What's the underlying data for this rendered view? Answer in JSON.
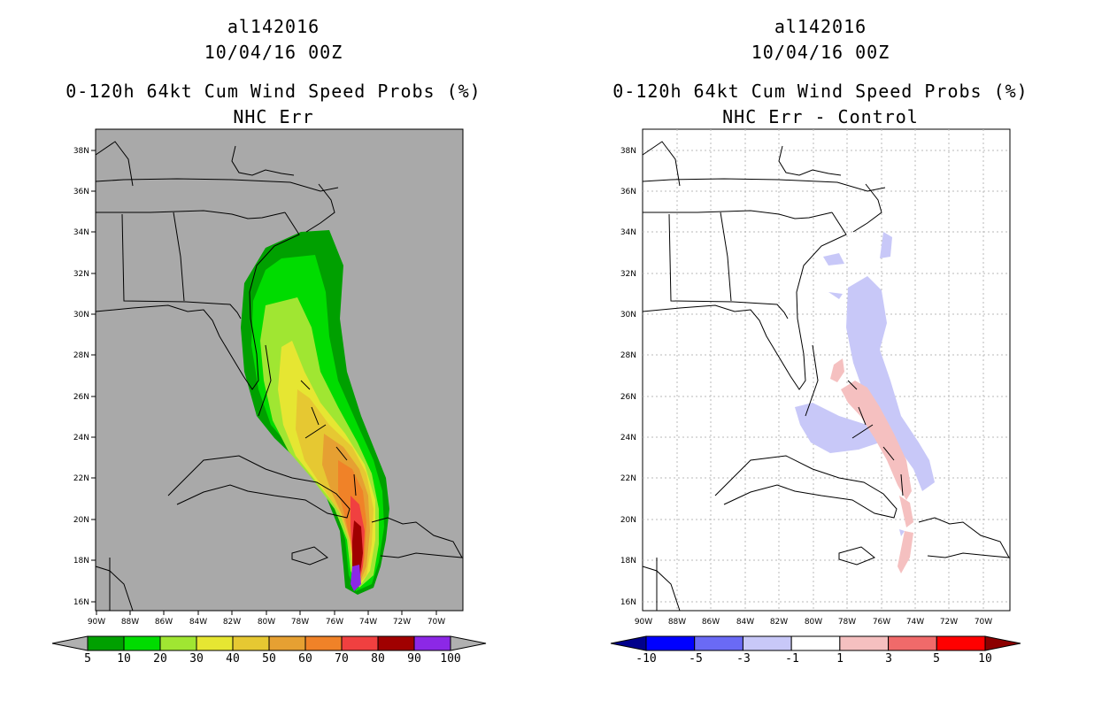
{
  "left": {
    "storm_id": "al142016",
    "datetime": "10/04/16 00Z",
    "product": "0-120h 64kt Cum Wind Speed Probs (%)",
    "subtitle": "NHC Err",
    "colorbar": {
      "labels": [
        "5",
        "10",
        "20",
        "30",
        "40",
        "50",
        "60",
        "70",
        "80",
        "90",
        "100"
      ],
      "colors": [
        "#b0b0b0",
        "#00a000",
        "#00dc00",
        "#a0e632",
        "#e6e632",
        "#e6c832",
        "#e6a032",
        "#f08228",
        "#f04040",
        "#a00000",
        "#8c28e6",
        "#b0b0b0"
      ]
    }
  },
  "right": {
    "storm_id": "al142016",
    "datetime": "10/04/16 00Z",
    "product": "0-120h 64kt Cum Wind Speed Probs (%)",
    "subtitle": "NHC Err - Control",
    "colorbar": {
      "labels": [
        "-10",
        "-5",
        "-3",
        "-1",
        "1",
        "3",
        "5",
        "10"
      ],
      "colors": [
        "#00008c",
        "#0000ff",
        "#6a6af5",
        "#c8c8f8",
        "#ffffff",
        "#f5c0c0",
        "#f06a6a",
        "#ff0000",
        "#8c0000"
      ]
    }
  },
  "axes": {
    "lat_labels": [
      "38N",
      "36N",
      "34N",
      "32N",
      "30N",
      "28N",
      "26N",
      "24N",
      "22N",
      "20N",
      "18N",
      "16N"
    ],
    "lon_labels": [
      "90W",
      "88W",
      "86W",
      "84W",
      "82W",
      "80W",
      "78W",
      "76W",
      "74W",
      "72W",
      "70W"
    ]
  }
}
